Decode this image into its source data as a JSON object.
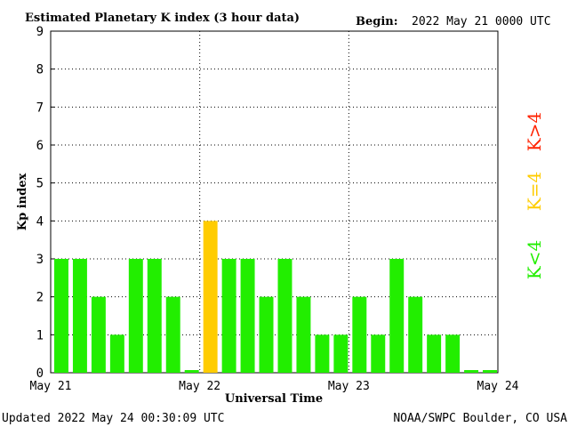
{
  "header": {
    "title": "Estimated Planetary K index (3 hour data)",
    "begin_label": "Begin:",
    "begin_value": "2022 May 21 0000 UTC"
  },
  "footer": {
    "updated": "Updated 2022 May 24 00:30:09 UTC",
    "source": "NOAA/SWPC Boulder, CO USA"
  },
  "legend": {
    "low": "K<4",
    "equal": "K=4",
    "high": "K>4",
    "colors": {
      "low": "#22ee00",
      "equal": "#ffcc00",
      "high": "#ff2200"
    }
  },
  "chart_data": {
    "type": "bar",
    "title": "Estimated Planetary K index (3 hour data)",
    "xlabel": "Universal Time",
    "ylabel": "Kp index",
    "ylim": [
      0,
      9
    ],
    "yticks": [
      "0",
      "1",
      "2",
      "3",
      "4",
      "5",
      "6",
      "7",
      "8",
      "9"
    ],
    "xticks": [
      "May 21",
      "May 22",
      "May 23",
      "May 24"
    ],
    "grid": true,
    "bar_interval_hours": 3,
    "values": [
      3,
      3,
      2,
      1,
      3,
      3,
      2,
      0.07,
      4,
      3,
      3,
      2,
      3,
      2,
      1,
      1,
      2,
      1,
      3,
      2,
      1,
      1,
      0.07,
      0.07
    ]
  }
}
